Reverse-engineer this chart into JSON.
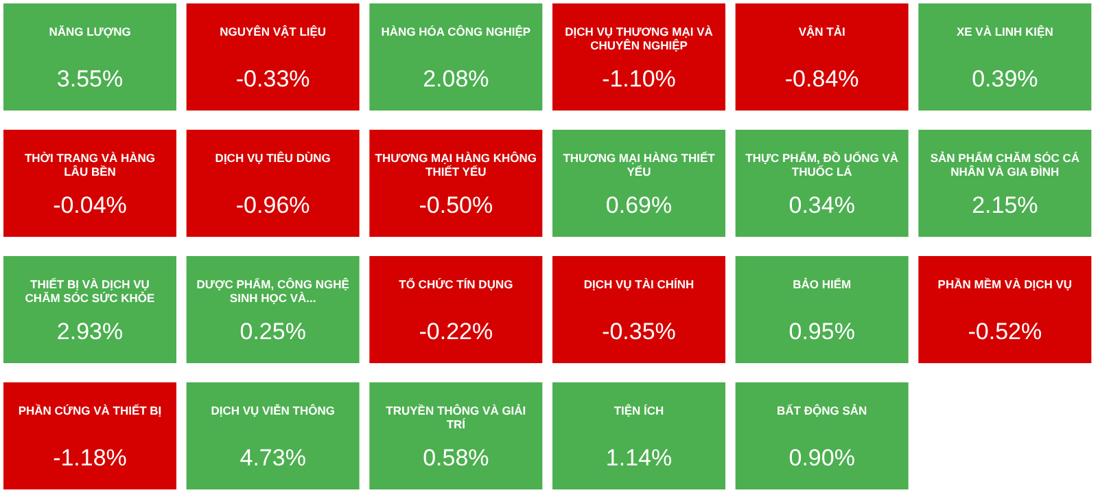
{
  "chart_data": {
    "type": "other",
    "categories": [
      "NĂNG LƯỢNG",
      "NGUYÊN VẬT LIỆU",
      "HÀNG HÓA CÔNG NGHIỆP",
      "DỊCH VỤ THƯƠNG MẠI VÀ CHUYÊN NGHIỆP",
      "VẬN TẢI",
      "XE VÀ LINH KIỆN",
      "THỜI TRANG VÀ HÀNG LÂU BỀN",
      "DỊCH VỤ TIÊU DÙNG",
      "THƯƠNG MẠI HÀNG KHÔNG THIẾT YẾU",
      "THƯƠNG MẠI HÀNG THIẾT YẾU",
      "THỰC PHẨM, ĐỒ UỐNG VÀ THUỐC LÁ",
      "SẢN PHẨM CHĂM SÓC CÁ NHÂN VÀ GIA ĐÌNH",
      "THIẾT BỊ VÀ DỊCH VỤ CHĂM SÓC SỨC KHỎE",
      "DƯỢC PHẨM, CÔNG NGHỆ SINH HỌC VÀ...",
      "TỔ CHỨC TÍN DỤNG",
      "DỊCH VỤ TÀI CHÍNH",
      "BẢO HIỂM",
      "PHẦN MỀM VÀ DỊCH VỤ",
      "PHẦN CỨNG VÀ THIẾT BỊ",
      "DỊCH VỤ VIỄN THÔNG",
      "TRUYỀN THÔNG VÀ GIẢI TRÍ",
      "TIỆN ÍCH",
      "BẤT ĐỘNG SẢN"
    ],
    "values": [
      3.55,
      -0.33,
      2.08,
      -1.1,
      -0.84,
      0.39,
      -0.04,
      -0.96,
      -0.5,
      0.69,
      0.34,
      2.15,
      2.93,
      0.25,
      -0.22,
      -0.35,
      0.95,
      -0.52,
      -1.18,
      4.73,
      0.58,
      1.14,
      0.9
    ],
    "value_labels": [
      "3.55%",
      "-0.33%",
      "2.08%",
      "-1.10%",
      "-0.84%",
      "0.39%",
      "-0.04%",
      "-0.96%",
      "-0.50%",
      "0.69%",
      "0.34%",
      "2.15%",
      "2.93%",
      "0.25%",
      "-0.22%",
      "-0.35%",
      "0.95%",
      "-0.52%",
      "-1.18%",
      "4.73%",
      "0.58%",
      "1.14%",
      "0.90%"
    ],
    "colors": [
      "#4caf50",
      "#d50000",
      "#4caf50",
      "#d50000",
      "#d50000",
      "#4caf50",
      "#d50000",
      "#d50000",
      "#d50000",
      "#4caf50",
      "#4caf50",
      "#4caf50",
      "#4caf50",
      "#4caf50",
      "#d50000",
      "#d50000",
      "#4caf50",
      "#d50000",
      "#d50000",
      "#4caf50",
      "#4caf50",
      "#4caf50",
      "#4caf50"
    ]
  }
}
